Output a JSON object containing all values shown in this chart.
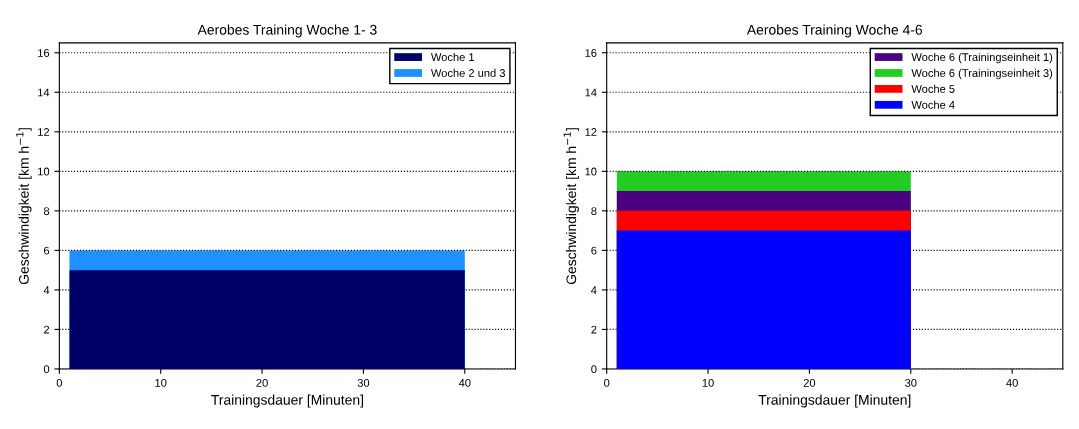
{
  "chart_data": [
    {
      "type": "area",
      "title": "Aerobes Training Woche 1- 3",
      "xlabel": "Trainingsdauer [Minuten]",
      "ylabel": "Geschwindigkeit [km h$^{−1}$]",
      "xlim": [
        0,
        45
      ],
      "xticks": [
        0,
        10,
        20,
        30,
        40
      ],
      "ylim": [
        0,
        16.5
      ],
      "yticks": [
        0,
        2,
        4,
        6,
        8,
        10,
        12,
        14,
        16
      ],
      "grid": "y",
      "legend": "top right",
      "series": [
        {
          "name": "Woche 1",
          "color": "#000066",
          "x": [
            1,
            40
          ],
          "values": [
            5,
            5
          ]
        },
        {
          "name": "Woche 2 und 3",
          "color": "#1e90ff",
          "x": [
            1,
            40
          ],
          "values": [
            6,
            6
          ]
        }
      ]
    },
    {
      "type": "area",
      "title": "Aerobes Training Woche 4-6",
      "xlabel": "Trainingsdauer [Minuten]",
      "ylabel": "Geschwindigkeit [km h$^{−1}$]",
      "xlim": [
        0,
        45
      ],
      "xticks": [
        0,
        10,
        20,
        30,
        40
      ],
      "ylim": [
        0,
        16.5
      ],
      "yticks": [
        0,
        2,
        4,
        6,
        8,
        10,
        12,
        14,
        16
      ],
      "grid": "y",
      "legend": "top right",
      "series": [
        {
          "name": "Woche 6 (Trainingseinheit 1)",
          "color": "#4b0082",
          "x": [
            1,
            30
          ],
          "values": [
            9,
            9
          ]
        },
        {
          "name": "Woche 6 (Trainingseinheit 3)",
          "color": "#22cc22",
          "x": [
            1,
            30
          ],
          "values": [
            10,
            10
          ]
        },
        {
          "name": "Woche 5",
          "color": "#ff0000",
          "x": [
            1,
            30
          ],
          "values": [
            8,
            8
          ]
        },
        {
          "name": "Woche 4",
          "color": "#0000ff",
          "x": [
            1,
            30
          ],
          "values": [
            7,
            7
          ]
        }
      ]
    }
  ]
}
